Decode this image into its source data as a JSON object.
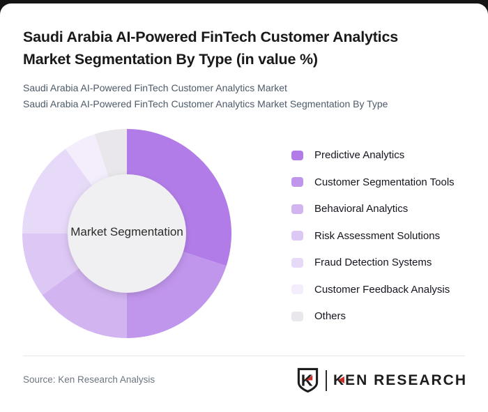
{
  "page": {
    "background_color": "#151515",
    "card_color": "#ffffff"
  },
  "header": {
    "title": "Saudi Arabia AI-Powered FinTech Customer Analytics Market Segmentation By Type (in value %)",
    "title_lines": [
      "Saudi Arabia AI-Powered FinTech Customer Analytics",
      "Market Segmentation By Type (in value %)"
    ],
    "subtitle_lines": [
      "Saudi Arabia AI-Powered FinTech Customer Analytics Market",
      "Saudi Arabia AI-Powered FinTech Customer Analytics Market Segmentation By Type"
    ]
  },
  "chart_data": {
    "type": "pie",
    "subtype": "donut",
    "title": "Saudi Arabia AI-Powered FinTech Customer Analytics Market Segmentation By Type (in value %)",
    "units": "value %",
    "center_label": "Market Segmentation",
    "categories": [
      "Predictive Analytics",
      "Customer Segmentation Tools",
      "Behavioral Analytics",
      "Risk Assessment Solutions",
      "Fraud Detection Systems",
      "Customer Feedback Analysis",
      "Others"
    ],
    "values": [
      30,
      20,
      15,
      10,
      15,
      5,
      5
    ],
    "colors": [
      "#b27ce8",
      "#c095ec",
      "#d2b4f1",
      "#ddc7f5",
      "#e7daf9",
      "#f3edfc",
      "#e9e7eb"
    ],
    "inner_circle_color": "#f0eff1",
    "start_angle_deg": 0,
    "direction": "clockwise",
    "legend_position": "right",
    "data_labels_shown": false
  },
  "footer": {
    "source": "Source: Ken Research Analysis",
    "logo": {
      "brand_text": "KEN RESEARCH",
      "accent_color": "#c5302c",
      "text_color": "#1d1d1d"
    }
  }
}
